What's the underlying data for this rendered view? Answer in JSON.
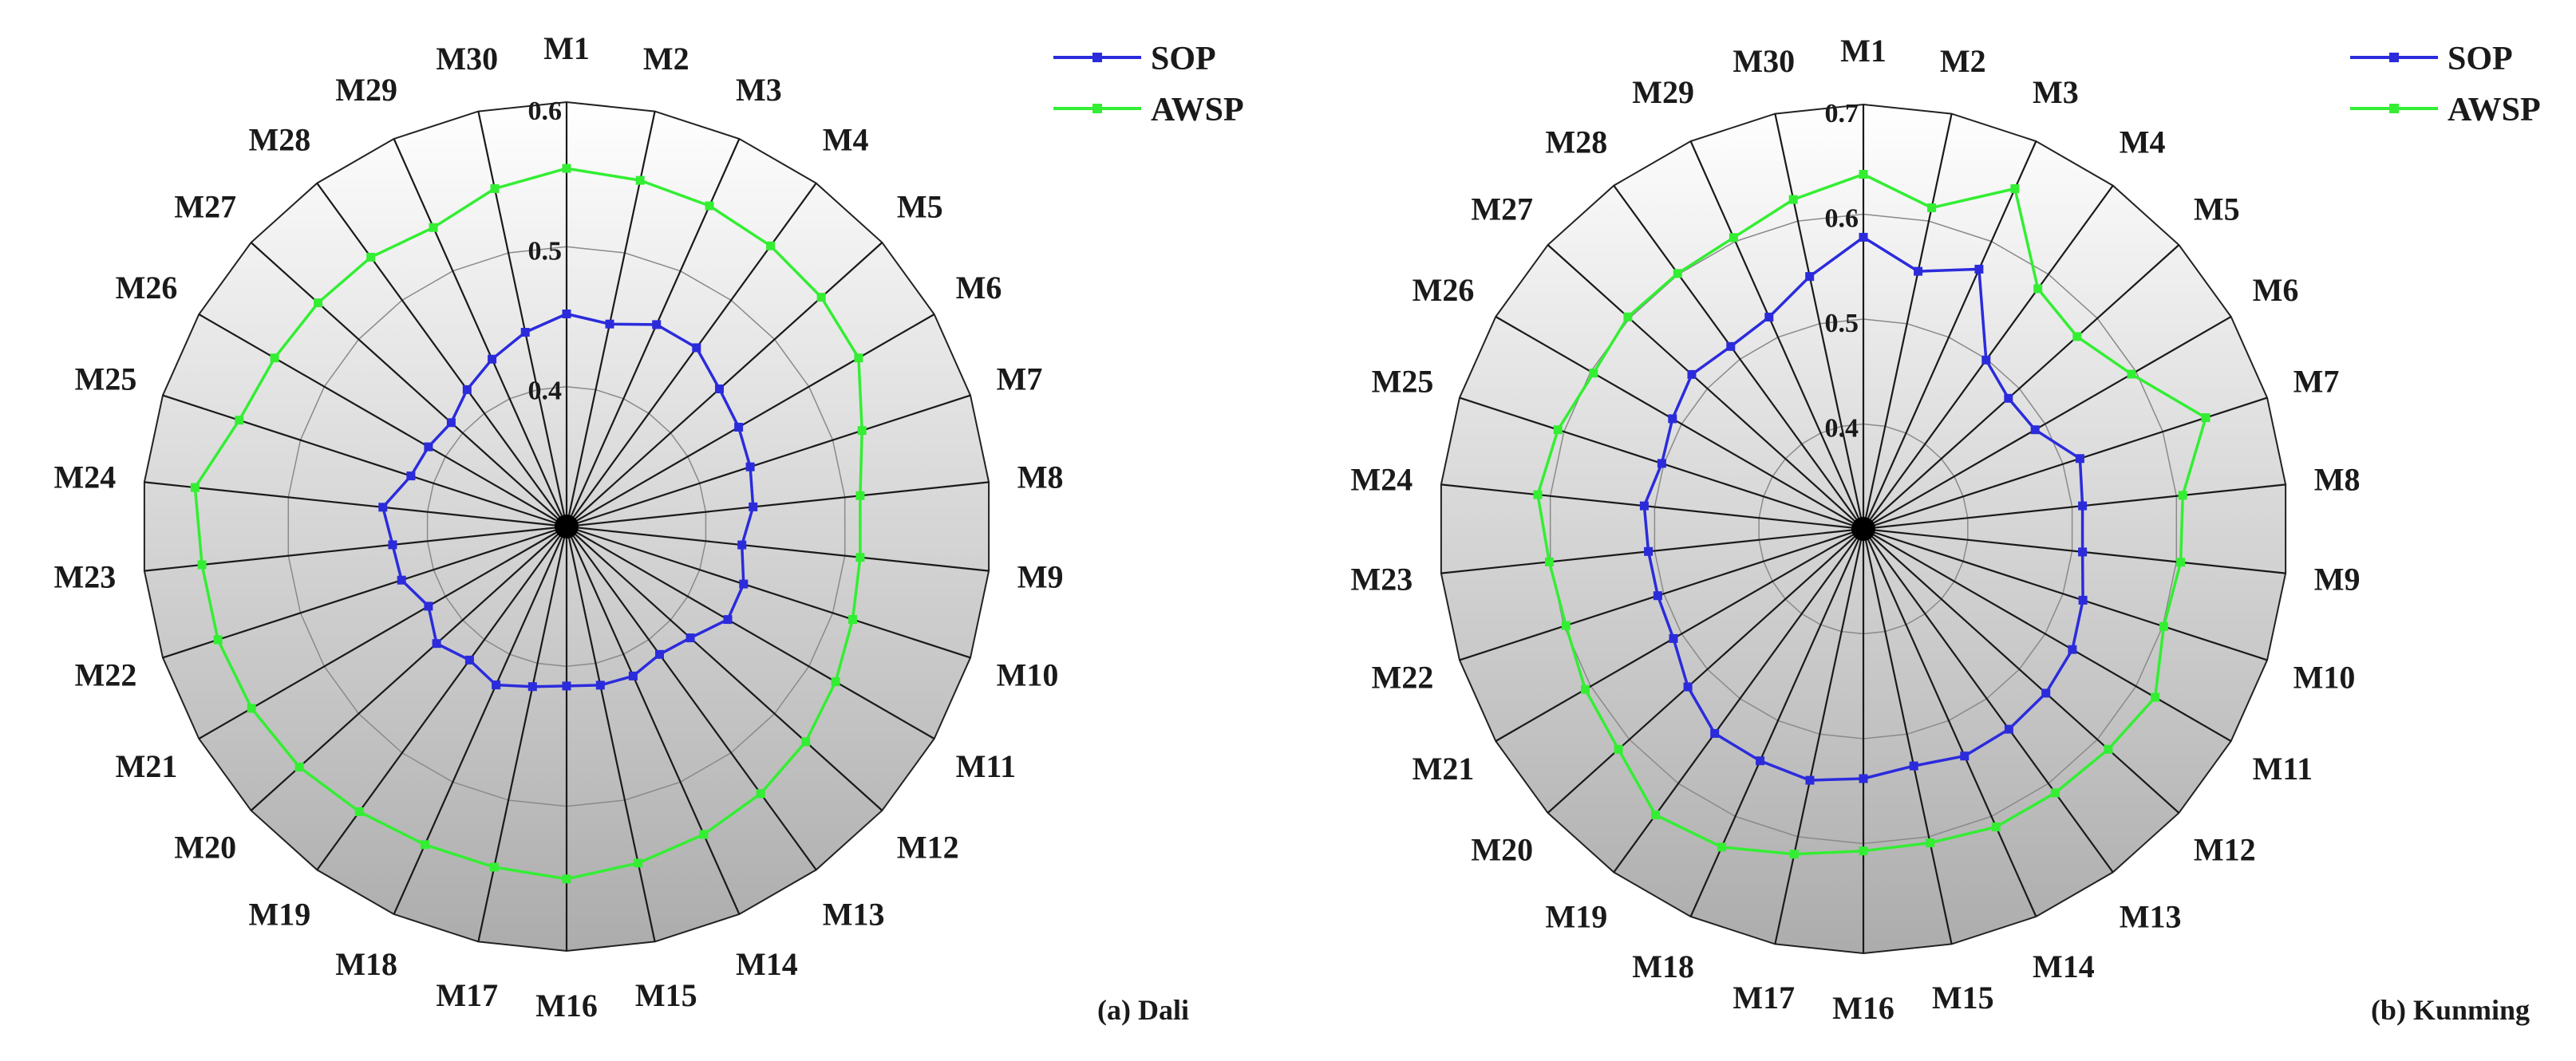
{
  "chart_data": [
    {
      "type": "radar",
      "caption": "(a) Dali",
      "categories": [
        "M1",
        "M2",
        "M3",
        "M4",
        "M5",
        "M6",
        "M7",
        "M8",
        "M9",
        "M10",
        "M11",
        "M12",
        "M13",
        "M14",
        "M15",
        "M16",
        "M17",
        "M18",
        "M19",
        "M20",
        "M21",
        "M22",
        "M23",
        "M24",
        "M25",
        "M26",
        "M27",
        "M28",
        "M29",
        "M30"
      ],
      "rlim": [
        0.3,
        0.6
      ],
      "ticks": [
        0.4,
        0.5,
        0.6
      ],
      "tick_labels": [
        "0.4",
        "0.5",
        "0.6"
      ],
      "grid": true,
      "legend_position": "top-right",
      "series": [
        {
          "name": "SOP",
          "color": "#2b2bdc",
          "values": [
            0.452,
            0.448,
            0.458,
            0.458,
            0.447,
            0.442,
            0.438,
            0.434,
            0.426,
            0.433,
            0.433,
            0.419,
            0.413,
            0.417,
            0.416,
            0.414,
            0.417,
            0.424,
            0.418,
            0.425,
            0.414,
            0.424,
            0.425,
            0.432,
            0.417,
            0.414,
            0.411,
            0.421,
            0.431,
            0.442
          ]
        },
        {
          "name": "AWSP",
          "color": "#33ee33",
          "values": [
            0.556,
            0.553,
            0.551,
            0.548,
            0.545,
            0.541,
            0.522,
            0.511,
            0.511,
            0.515,
            0.522,
            0.53,
            0.536,
            0.541,
            0.546,
            0.552,
            0.549,
            0.549,
            0.552,
            0.557,
            0.56,
            0.562,
            0.562,
            0.567,
            0.546,
            0.541,
            0.539,
            0.538,
            0.534,
            0.547
          ]
        }
      ]
    },
    {
      "type": "radar",
      "caption": "(b) Kunming",
      "categories": [
        "M1",
        "M2",
        "M3",
        "M4",
        "M5",
        "M6",
        "M7",
        "M8",
        "M9",
        "M10",
        "M11",
        "M12",
        "M13",
        "M14",
        "M15",
        "M16",
        "M17",
        "M18",
        "M19",
        "M20",
        "M21",
        "M22",
        "M23",
        "M24",
        "M25",
        "M26",
        "M27",
        "M28",
        "M29",
        "M30"
      ],
      "rlim": [
        0.3,
        0.7
      ],
      "ticks": [
        0.4,
        0.5,
        0.6,
        0.7
      ],
      "tick_labels": [
        "0.4",
        "0.5",
        "0.6",
        "0.7"
      ],
      "grid": true,
      "legend_position": "top-right",
      "series": [
        {
          "name": "SOP",
          "color": "#2b2bdc",
          "values": [
            0.578,
            0.551,
            0.571,
            0.499,
            0.486,
            0.489,
            0.517,
            0.51,
            0.51,
            0.52,
            0.53,
            0.534,
            0.536,
            0.537,
            0.531,
            0.538,
            0.545,
            0.542,
            0.541,
            0.525,
            0.509,
            0.506,
            0.506,
            0.51,
            0.502,
            0.51,
            0.52,
            0.515,
            0.521,
            0.546
          ]
        },
        {
          "name": "AWSP",
          "color": "#33ee33",
          "values": [
            0.638,
            0.613,
            0.655,
            0.583,
            0.574,
            0.595,
            0.643,
            0.606,
            0.604,
            0.601,
            0.621,
            0.614,
            0.611,
            0.611,
            0.606,
            0.607,
            0.617,
            0.632,
            0.637,
            0.614,
            0.606,
            0.598,
            0.601,
            0.612,
            0.606,
            0.597,
            0.602,
            0.601,
            0.604,
            0.621
          ]
        }
      ]
    }
  ]
}
